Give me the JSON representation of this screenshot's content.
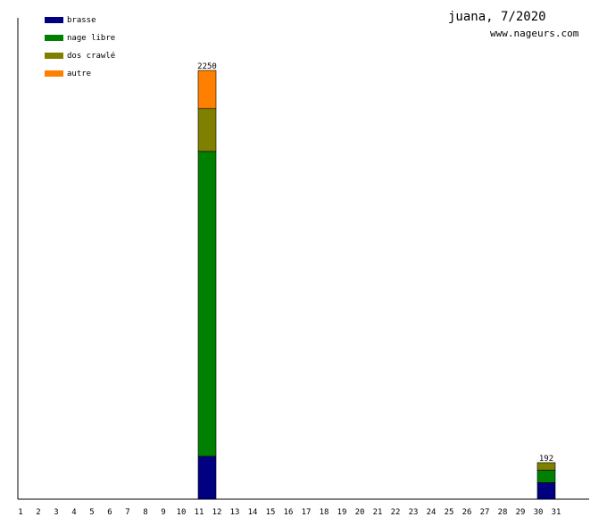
{
  "chart_data": {
    "type": "bar",
    "stacked": true,
    "title": "juana, 7/2020",
    "subtitle": "www.nageurs.com",
    "legend_position": "top-left",
    "grid": false,
    "categories": [
      "1",
      "2",
      "3",
      "4",
      "5",
      "6",
      "7",
      "8",
      "9",
      "10",
      "11",
      "12",
      "13",
      "14",
      "15",
      "16",
      "17",
      "18",
      "19",
      "20",
      "21",
      "22",
      "23",
      "24",
      "25",
      "26",
      "27",
      "28",
      "29",
      "30",
      "31"
    ],
    "ylim": [
      0,
      2250
    ],
    "series": [
      {
        "name": "brasse",
        "color": "#000080",
        "values": [
          0,
          0,
          0,
          0,
          0,
          0,
          0,
          0,
          0,
          0,
          225,
          0,
          0,
          0,
          0,
          0,
          0,
          0,
          0,
          0,
          0,
          0,
          0,
          0,
          0,
          0,
          0,
          0,
          0,
          87,
          0
        ]
      },
      {
        "name": "nage libre",
        "color": "#008000",
        "values": [
          0,
          0,
          0,
          0,
          0,
          0,
          0,
          0,
          0,
          0,
          1600,
          0,
          0,
          0,
          0,
          0,
          0,
          0,
          0,
          0,
          0,
          0,
          0,
          0,
          0,
          0,
          0,
          0,
          0,
          65,
          0
        ]
      },
      {
        "name": "dos crawlé",
        "color": "#808000",
        "values": [
          0,
          0,
          0,
          0,
          0,
          0,
          0,
          0,
          0,
          0,
          225,
          0,
          0,
          0,
          0,
          0,
          0,
          0,
          0,
          0,
          0,
          0,
          0,
          0,
          0,
          0,
          0,
          0,
          0,
          40,
          0
        ]
      },
      {
        "name": "autre",
        "color": "#ff8000",
        "values": [
          0,
          0,
          0,
          0,
          0,
          0,
          0,
          0,
          0,
          0,
          200,
          0,
          0,
          0,
          0,
          0,
          0,
          0,
          0,
          0,
          0,
          0,
          0,
          0,
          0,
          0,
          0,
          0,
          0,
          0,
          0
        ]
      }
    ],
    "totals": [
      {
        "day": "11",
        "label": "2250"
      },
      {
        "day": "30",
        "label": "192"
      }
    ]
  }
}
